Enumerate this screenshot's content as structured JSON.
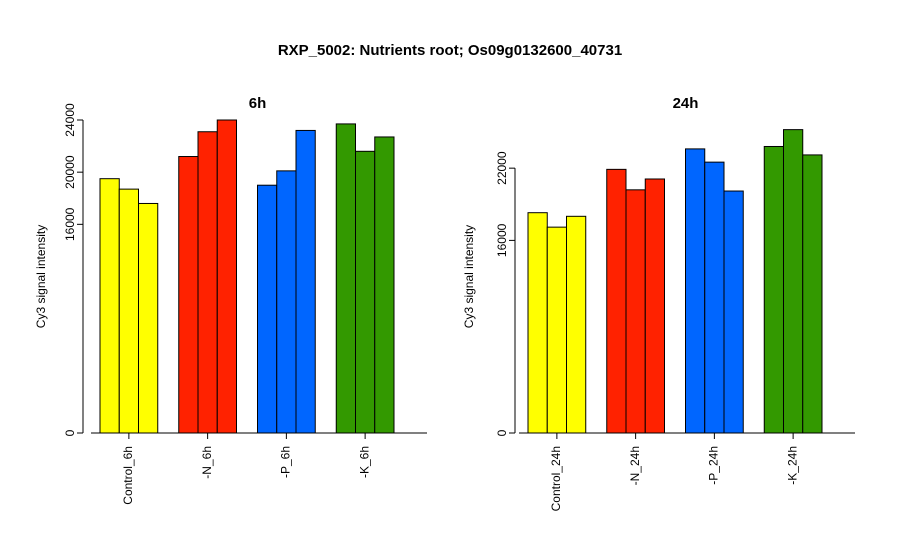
{
  "title": "RXP_5002: Nutrients root; Os09g0132600_40731",
  "chart_data": [
    {
      "type": "bar",
      "title": "6h",
      "ylabel": "Cy3 signal intensity",
      "ylim": [
        0,
        24000
      ],
      "yticks": [
        0,
        16000,
        20000,
        24000
      ],
      "categories": [
        "Control_6h",
        "-N_6h",
        "-P_6h",
        "-K_6h"
      ],
      "colors": [
        "#ffff00",
        "#ff2200",
        "#0066ff",
        "#339900"
      ],
      "values": [
        [
          19500,
          18700,
          17600
        ],
        [
          21200,
          23100,
          24000
        ],
        [
          19000,
          20100,
          23200
        ],
        [
          23700,
          21600,
          22700
        ]
      ]
    },
    {
      "type": "bar",
      "title": "24h",
      "ylabel": "Cy3 signal intensity",
      "ylim": [
        0,
        26000
      ],
      "yticks": [
        0,
        16000,
        22000
      ],
      "categories": [
        "Control_24h",
        "-N_24h",
        "-P_24h",
        "-K_24h"
      ],
      "colors": [
        "#ffff00",
        "#ff2200",
        "#0066ff",
        "#339900"
      ],
      "values": [
        [
          18300,
          17100,
          18000
        ],
        [
          21900,
          20200,
          21100
        ],
        [
          23600,
          22500,
          20100
        ],
        [
          23800,
          25200,
          23100
        ]
      ]
    }
  ]
}
